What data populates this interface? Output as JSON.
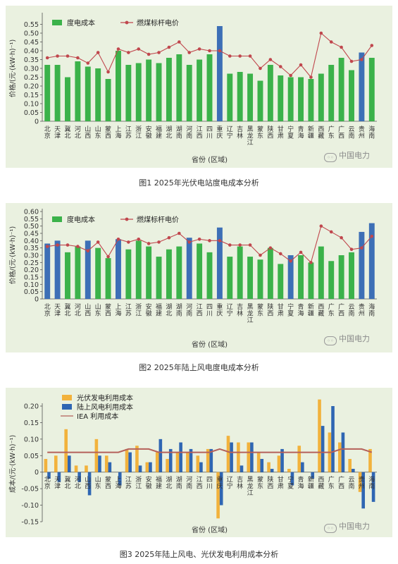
{
  "logo_text": "中国电力",
  "chart_data": [
    {
      "id": "fig1",
      "type": "bar",
      "caption": "图1  2025年光伏电站度电成本分析",
      "ylabel": "价格/(元·(kW·h)⁻¹)",
      "xlabel": "省份 (区域)",
      "ylim": [
        0,
        0.6
      ],
      "yticks": [
        "0",
        "0.05",
        "0.10",
        "0.15",
        "0.20",
        "0.25",
        "0.30",
        "0.35",
        "0.40",
        "0.45",
        "0.50",
        "0.55"
      ],
      "ytick_values": [
        0,
        0.05,
        0.1,
        0.15,
        0.2,
        0.25,
        0.3,
        0.35,
        0.4,
        0.45,
        0.5,
        0.55
      ],
      "legend": {
        "placement": "top-left"
      },
      "categories": [
        "北京",
        "天津",
        "冀北",
        "河北",
        "山西",
        "山东",
        "蒙西",
        "上海",
        "江苏",
        "浙江",
        "安徽",
        "福建",
        "湖北",
        "湖南",
        "河南",
        "江西",
        "四川",
        "重庆",
        "辽宁",
        "吉林",
        "黑龙江",
        "蒙东",
        "陕西",
        "甘肃",
        "宁夏",
        "青海",
        "新疆",
        "西藏",
        "广东",
        "广西",
        "云南",
        "贵州",
        "海南"
      ],
      "bar_series": {
        "name": "度电成本",
        "color": "#3bb24a",
        "highlight_color": "#3d6fb6",
        "values": [
          0.32,
          0.32,
          0.25,
          0.34,
          0.31,
          0.3,
          0.24,
          0.4,
          0.32,
          0.33,
          0.35,
          0.33,
          0.36,
          0.38,
          0.32,
          0.35,
          0.38,
          0.54,
          0.27,
          0.28,
          0.27,
          0.23,
          0.32,
          0.26,
          0.25,
          0.25,
          0.24,
          0.27,
          0.32,
          0.36,
          0.29,
          0.39,
          0.36
        ],
        "highlight": [
          false,
          false,
          false,
          false,
          false,
          false,
          false,
          false,
          false,
          false,
          false,
          false,
          false,
          false,
          false,
          false,
          false,
          true,
          false,
          false,
          false,
          false,
          false,
          false,
          false,
          false,
          false,
          false,
          false,
          false,
          false,
          true,
          false
        ]
      },
      "line_series": {
        "name": "燃煤标杆电价",
        "color": "#c0474d",
        "values": [
          0.36,
          0.37,
          0.37,
          0.36,
          0.33,
          0.39,
          0.28,
          0.41,
          0.39,
          0.41,
          0.38,
          0.39,
          0.42,
          0.45,
          0.39,
          0.41,
          0.4,
          0.4,
          0.37,
          0.37,
          0.37,
          0.3,
          0.35,
          0.31,
          0.26,
          0.32,
          0.25,
          0.5,
          0.45,
          0.42,
          0.34,
          0.35,
          0.43
        ]
      }
    },
    {
      "id": "fig2",
      "type": "bar",
      "caption": "图2  2025年陆上风电度电成本分析",
      "ylabel": "价格/(元·(kW·h)⁻¹)",
      "xlabel": "省份 (区域)",
      "ylim": [
        0,
        0.6
      ],
      "yticks": [
        "0",
        "0.05",
        "0.10",
        "0.15",
        "0.20",
        "0.25",
        "0.30",
        "0.35",
        "0.40",
        "0.45",
        "0.50",
        "0.55",
        "0.60"
      ],
      "ytick_values": [
        0,
        0.05,
        0.1,
        0.15,
        0.2,
        0.25,
        0.3,
        0.35,
        0.4,
        0.45,
        0.5,
        0.55,
        0.6
      ],
      "legend": {
        "placement": "top-left"
      },
      "categories": [
        "北京",
        "天津",
        "冀北",
        "河北",
        "山西",
        "山东",
        "蒙西",
        "上海",
        "江苏",
        "浙江",
        "安徽",
        "福建",
        "湖北",
        "湖南",
        "河南",
        "江西",
        "四川",
        "重庆",
        "辽宁",
        "吉林",
        "黑龙江",
        "蒙东",
        "陕西",
        "甘肃",
        "宁夏",
        "青海",
        "新疆",
        "西藏",
        "广东",
        "广西",
        "云南",
        "贵州",
        "海南"
      ],
      "bar_series": {
        "name": "度电成本",
        "color": "#3bb24a",
        "highlight_color": "#3d6fb6",
        "values": [
          0.38,
          0.4,
          0.32,
          0.36,
          0.4,
          0.35,
          0.28,
          0.41,
          0.34,
          0.4,
          0.36,
          0.29,
          0.34,
          0.36,
          0.42,
          0.38,
          0.32,
          0.49,
          0.29,
          0.36,
          0.29,
          0.27,
          0.35,
          0.24,
          0.3,
          0.3,
          0.25,
          0.36,
          0.26,
          0.3,
          0.32,
          0.46,
          0.52
        ],
        "highlight": [
          true,
          true,
          false,
          false,
          true,
          false,
          false,
          true,
          false,
          false,
          false,
          false,
          false,
          false,
          true,
          false,
          false,
          true,
          false,
          false,
          false,
          false,
          false,
          false,
          true,
          false,
          false,
          false,
          false,
          false,
          false,
          true,
          true
        ]
      },
      "line_series": {
        "name": "燃煤标杆电价",
        "color": "#c0474d",
        "values": [
          0.36,
          0.37,
          0.37,
          0.36,
          0.33,
          0.39,
          0.29,
          0.41,
          0.39,
          0.41,
          0.38,
          0.39,
          0.42,
          0.45,
          0.39,
          0.41,
          0.4,
          0.4,
          0.37,
          0.37,
          0.37,
          0.3,
          0.35,
          0.31,
          0.26,
          0.32,
          0.25,
          0.5,
          0.46,
          0.42,
          0.34,
          0.35,
          0.43
        ]
      }
    },
    {
      "id": "fig3",
      "type": "bar",
      "caption": "图3  2025年陆上风电、光伏发电利用成本分析",
      "ylabel": "成本/(元·(kW·h)⁻¹)",
      "xlabel": "省份 (区域)",
      "ylim": [
        -0.15,
        0.2
      ],
      "yticks": [
        "-0.15",
        "-0.10",
        "-0.05",
        "0",
        "0.05",
        "0.10",
        "0.15",
        "0.20"
      ],
      "ytick_values": [
        -0.15,
        -0.1,
        -0.05,
        0,
        0.05,
        0.1,
        0.15,
        0.2
      ],
      "legend": {
        "placement": "top-left"
      },
      "categories": [
        "北京",
        "天津",
        "冀北",
        "河北",
        "山西",
        "山东",
        "蒙西",
        "上海",
        "江苏",
        "浙江",
        "安徽",
        "福建",
        "湖北",
        "湖南",
        "河南",
        "江西",
        "四川",
        "重庆",
        "辽宁",
        "吉林",
        "黑龙江",
        "蒙东",
        "陕西",
        "甘肃",
        "宁夏",
        "青海",
        "新疆",
        "西藏",
        "广东",
        "广西",
        "云南",
        "贵州",
        "海南"
      ],
      "series": [
        {
          "name": "光伏发电利用成本",
          "color": "#f2b23c",
          "values": [
            0.04,
            0.05,
            0.13,
            0.02,
            0.02,
            0.1,
            0.05,
            0.0,
            0.07,
            0.08,
            0.03,
            0.06,
            0.04,
            0.06,
            0.06,
            0.05,
            0.07,
            -0.14,
            0.11,
            0.09,
            0.09,
            0.06,
            0.03,
            0.05,
            0.01,
            0.08,
            0.0,
            0.22,
            0.12,
            0.09,
            0.04,
            -0.06,
            0.07
          ]
        },
        {
          "name": "陆上风电利用成本",
          "color": "#2f66b3",
          "values": [
            -0.02,
            -0.03,
            0.05,
            -0.03,
            -0.07,
            0.05,
            0.03,
            -0.04,
            0.06,
            0.02,
            0.03,
            0.1,
            0.07,
            0.09,
            0.07,
            0.03,
            0.07,
            -0.1,
            0.09,
            0.02,
            0.09,
            0.04,
            0.01,
            0.07,
            -0.04,
            0.03,
            -0.02,
            0.14,
            0.2,
            0.12,
            0.01,
            -0.11,
            -0.09
          ]
        }
      ],
      "line_series": {
        "name": "IEA 利用成本",
        "color": "#b5615a",
        "values": [
          0.06,
          0.06,
          0.06,
          0.06,
          0.06,
          0.06,
          0.06,
          0.06,
          0.07,
          0.07,
          0.07,
          0.06,
          0.06,
          0.06,
          0.06,
          0.06,
          0.06,
          0.07,
          0.06,
          0.06,
          0.06,
          0.06,
          0.06,
          0.06,
          0.06,
          0.06,
          0.06,
          0.06,
          0.06,
          0.07,
          0.07,
          0.07,
          0.06
        ]
      }
    }
  ]
}
